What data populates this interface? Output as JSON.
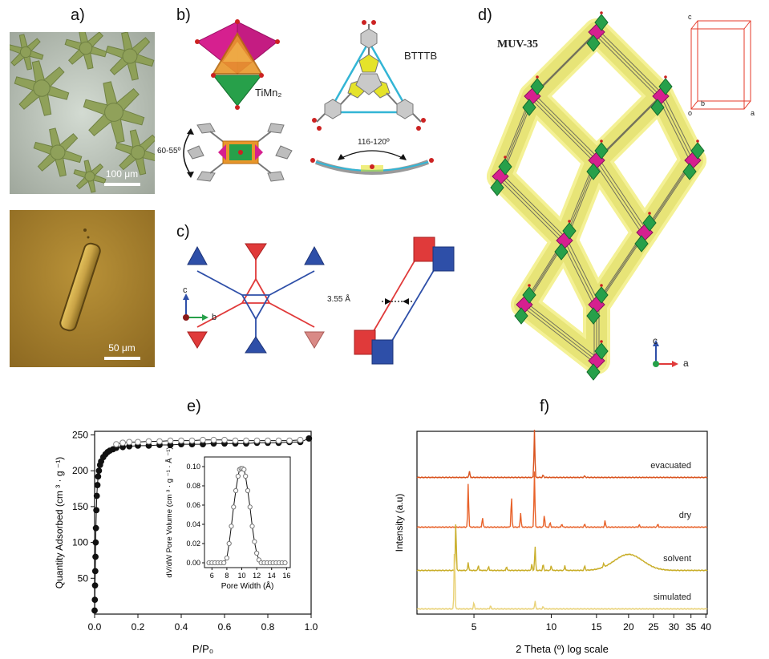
{
  "panels": {
    "a": {
      "label": "a)",
      "scale_top": "100 μm",
      "scale_bottom": "50 μm",
      "colors": {
        "crystal_bg": "#b9c3b7",
        "crystal": "#8c9e52",
        "rod_bg": "#a8822f",
        "rod": "#c9a346"
      }
    },
    "b": {
      "label": "b)",
      "tiMn_label": "TiMn₂",
      "btttb_label": "BTTTB",
      "angle_left": "60-55º",
      "angle_right": "116-120º",
      "colors": {
        "magenta": "#d6208f",
        "orange": "#e8962a",
        "green": "#27a04a",
        "yellow": "#e5e32a",
        "cyan": "#33b5d5",
        "gray": "#9a9a9a"
      }
    },
    "c": {
      "label": "c)",
      "axis_c": "c",
      "axis_b": "b",
      "distance": "3.55 Å",
      "colors": {
        "red": "#e03a3a",
        "blue": "#2e4fa8",
        "pink": "#d98a86"
      }
    },
    "d": {
      "label": "d)",
      "title": "MUV-35",
      "axis_c": "c",
      "axis_a": "a",
      "cell_labels": {
        "c": "c",
        "b": "b",
        "o": "o",
        "a": "a"
      },
      "colors": {
        "glow": "#f3f08a",
        "glow_edge": "#dcd85a"
      }
    },
    "e": {
      "label": "e)"
    },
    "f": {
      "label": "f)"
    }
  },
  "chart_data": [
    {
      "type": "scatter",
      "panel": "e",
      "ylabel": "Quantity Adsorbed (cm ³ · g ⁻¹)",
      "xlabel": "P/P₀",
      "xlim": [
        0,
        1.0
      ],
      "ylim": [
        0,
        255
      ],
      "xticks": [
        "0.0",
        "0.2",
        "0.4",
        "0.6",
        "0.8",
        "1.0"
      ],
      "yticks": [
        "50",
        "100",
        "150",
        "200",
        "250"
      ],
      "xtick_values": [
        0,
        0.2,
        0.4,
        0.6,
        0.8,
        1.0
      ],
      "ytick_values": [
        50,
        100,
        150,
        200,
        250
      ],
      "series": [
        {
          "marker": "filled",
          "x": [
            0.0,
            0.001,
            0.002,
            0.003,
            0.004,
            0.005,
            0.006,
            0.008,
            0.01,
            0.013,
            0.016,
            0.02,
            0.025,
            0.03,
            0.04,
            0.05,
            0.06,
            0.07,
            0.085,
            0.1,
            0.13,
            0.16,
            0.2,
            0.25,
            0.3,
            0.35,
            0.4,
            0.45,
            0.5,
            0.55,
            0.6,
            0.65,
            0.7,
            0.75,
            0.8,
            0.85,
            0.9,
            0.95,
            0.99
          ],
          "y": [
            5,
            20,
            40,
            60,
            80,
            100,
            120,
            145,
            165,
            180,
            192,
            200,
            208,
            213,
            219,
            223,
            226,
            228,
            230,
            232,
            233,
            234,
            235,
            235,
            236,
            236,
            237,
            237,
            237,
            238,
            238,
            238,
            238,
            239,
            239,
            239,
            240,
            240,
            245
          ]
        },
        {
          "marker": "open",
          "x": [
            0.1,
            0.13,
            0.16,
            0.2,
            0.25,
            0.3,
            0.35,
            0.4,
            0.45,
            0.5,
            0.55,
            0.6,
            0.65,
            0.7,
            0.75,
            0.8,
            0.85,
            0.9,
            0.95
          ],
          "y": [
            237,
            239,
            240,
            240,
            241,
            241,
            242,
            242,
            242,
            243,
            243,
            243,
            242,
            242,
            242,
            242,
            242,
            242,
            243
          ]
        }
      ],
      "inset": {
        "type": "line",
        "xlabel": "Pore Width (Å)",
        "ylabel": "dV/dW Pore Volume (cm ³ · g ⁻¹ · Å ⁻¹)",
        "xlim": [
          5,
          16.5
        ],
        "ylim": [
          -0.005,
          0.11
        ],
        "xticks": [
          "6",
          "8",
          "10",
          "12",
          "14",
          "16"
        ],
        "yticks": [
          "0.00",
          "0.02",
          "0.04",
          "0.06",
          "0.08",
          "0.10"
        ],
        "xtick_values": [
          6,
          8,
          10,
          12,
          14,
          16
        ],
        "ytick_values": [
          0.0,
          0.02,
          0.04,
          0.06,
          0.08,
          0.1
        ],
        "x": [
          5.6,
          6.0,
          6.4,
          6.8,
          7.2,
          7.6,
          8.0,
          8.3,
          8.6,
          8.9,
          9.2,
          9.5,
          9.7,
          9.9,
          10.1,
          10.3,
          10.5,
          10.8,
          11.1,
          11.4,
          11.7,
          12.0,
          12.3,
          12.6,
          13.0,
          13.4,
          13.8,
          14.2,
          14.6,
          15.0,
          15.4,
          15.8
        ],
        "y": [
          0.0,
          0.0,
          0.0,
          0.0,
          0.0,
          0.0,
          0.005,
          0.02,
          0.038,
          0.058,
          0.075,
          0.09,
          0.097,
          0.098,
          0.098,
          0.097,
          0.09,
          0.075,
          0.058,
          0.038,
          0.022,
          0.01,
          0.003,
          0.0,
          0.0,
          0.0,
          0.0,
          0.0,
          0.0,
          0.0,
          0.0,
          0.0
        ]
      }
    },
    {
      "type": "line",
      "panel": "f",
      "xlabel": "2 Theta (º) log scale",
      "ylabel": "Intensity (a.u)",
      "x_scale": "log",
      "xlim": [
        3.0,
        40.5
      ],
      "xticks": [
        "5",
        "10",
        "15",
        "20",
        "25",
        "30",
        "35",
        "40"
      ],
      "xtick_values": [
        5,
        10,
        15,
        20,
        25,
        30,
        35,
        40
      ],
      "series": [
        {
          "name": "evacuated",
          "color": "#d9531e",
          "peaks": [
            [
              4.8,
              8
            ],
            [
              8.6,
              60
            ],
            [
              9.3,
              3
            ],
            [
              13.5,
              2
            ]
          ]
        },
        {
          "name": "dry",
          "color": "#e8622a",
          "peaks": [
            [
              4.75,
              55
            ],
            [
              5.4,
              12
            ],
            [
              7.0,
              38
            ],
            [
              7.6,
              18
            ],
            [
              8.6,
              70
            ],
            [
              9.4,
              15
            ],
            [
              9.9,
              6
            ],
            [
              11.0,
              4
            ],
            [
              13.5,
              4
            ],
            [
              16.2,
              8
            ],
            [
              22.0,
              3
            ],
            [
              26.0,
              4
            ]
          ]
        },
        {
          "name": "solvent",
          "color": "#c9ae2a",
          "peaks": [
            [
              4.25,
              60
            ],
            [
              4.75,
              10
            ],
            [
              5.2,
              6
            ],
            [
              5.7,
              5
            ],
            [
              6.7,
              5
            ],
            [
              8.4,
              8
            ],
            [
              8.65,
              30
            ],
            [
              9.3,
              8
            ],
            [
              10.0,
              6
            ],
            [
              11.3,
              6
            ],
            [
              13.5,
              6
            ],
            [
              16.0,
              5
            ]
          ],
          "hump": [
            20.0,
            20
          ]
        },
        {
          "name": "simulated",
          "color": "#e9d278",
          "peaks": [
            [
              4.2,
              75
            ],
            [
              5.0,
              8
            ],
            [
              5.8,
              4
            ],
            [
              8.65,
              10
            ],
            [
              9.3,
              3
            ]
          ]
        }
      ]
    }
  ]
}
